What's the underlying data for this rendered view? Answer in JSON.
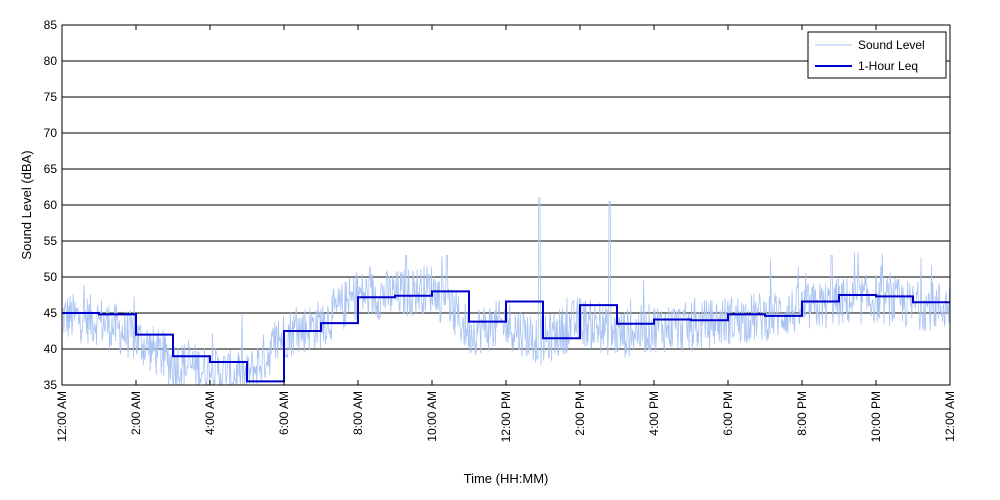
{
  "chart_data": {
    "type": "line",
    "title": "",
    "xlabel": "Time (HH:MM)",
    "ylabel": "Sound Level (dBA)",
    "ylim": [
      35,
      85
    ],
    "xlim_hours": [
      0,
      24
    ],
    "grid": "horizontal",
    "legend_position": "top-right",
    "x_tick_labels": [
      "12:00 AM",
      "2:00 AM",
      "4:00 AM",
      "6:00 AM",
      "8:00 AM",
      "10:00 AM",
      "12:00 PM",
      "2:00 PM",
      "4:00 PM",
      "6:00 PM",
      "8:00 PM",
      "10:00 PM",
      "12:00 AM"
    ],
    "y_ticks": [
      35,
      40,
      45,
      50,
      55,
      60,
      65,
      70,
      75,
      80,
      85
    ],
    "series": [
      {
        "name": "Sound Level",
        "color": "#a9c3f2",
        "style": "thin-line",
        "hourly_approx_mean": [
          44.5,
          44.0,
          41.5,
          38.0,
          37.0,
          36.0,
          42.0,
          43.5,
          47.5,
          47.5,
          48.5,
          42.5,
          43.5,
          41.0,
          44.0,
          42.0,
          43.0,
          43.0,
          44.0,
          44.5,
          45.5,
          46.5,
          47.0,
          46.0
        ],
        "spikes": [
          {
            "hour": 12.9,
            "value": 61
          },
          {
            "hour": 14.8,
            "value": 60.5
          },
          {
            "hour": 9.3,
            "value": 53
          },
          {
            "hour": 10.4,
            "value": 53
          },
          {
            "hour": 20.8,
            "value": 53
          }
        ]
      },
      {
        "name": "1-Hour Leq",
        "color": "#0000cc",
        "style": "step",
        "hours": [
          0,
          1,
          2,
          3,
          4,
          5,
          6,
          7,
          8,
          9,
          10,
          11,
          12,
          13,
          14,
          15,
          16,
          17,
          18,
          19,
          20,
          21,
          22,
          23
        ],
        "values": [
          45.0,
          44.8,
          42.0,
          39.0,
          38.2,
          35.5,
          42.5,
          43.6,
          47.2,
          47.4,
          48.0,
          43.8,
          46.6,
          41.5,
          46.1,
          43.5,
          44.1,
          44.0,
          44.8,
          44.6,
          46.6,
          47.5,
          47.3,
          46.5
        ]
      }
    ]
  }
}
